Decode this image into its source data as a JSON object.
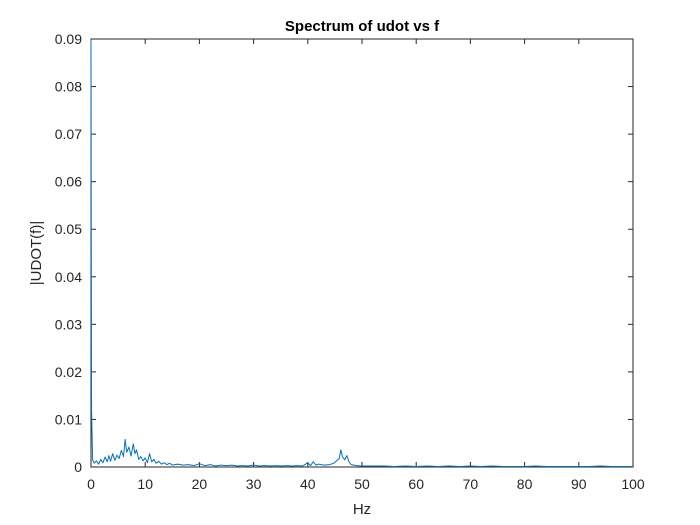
{
  "chart_data": {
    "type": "line",
    "title": "Spectrum of udot vs f",
    "xlabel": "Hz",
    "ylabel": "|UDOT(f)|",
    "xlim": [
      0,
      100
    ],
    "ylim": [
      0,
      0.09
    ],
    "x_ticks": [
      0,
      10,
      20,
      30,
      40,
      50,
      60,
      70,
      80,
      90,
      100
    ],
    "y_ticks": [
      0,
      0.01,
      0.02,
      0.03,
      0.04,
      0.05,
      0.06,
      0.07,
      0.08,
      0.09
    ],
    "y_tick_labels": [
      "0",
      "0.01",
      "0.02",
      "0.03",
      "0.04",
      "0.05",
      "0.06",
      "0.07",
      "0.08",
      "0.09"
    ],
    "grid": false,
    "line_color": "#0072BD",
    "series": [
      {
        "x": [
          0,
          0.1,
          0.3,
          0.6,
          1.0,
          1.4,
          1.8,
          2.2,
          2.6,
          3.0,
          3.3,
          3.6,
          4.0,
          4.4,
          4.8,
          5.2,
          5.6,
          6.0,
          6.3,
          6.6,
          7.0,
          7.4,
          7.8,
          8.1,
          8.4,
          8.8,
          9.2,
          9.6,
          10.0,
          10.4,
          10.8,
          11.2,
          11.6,
          12.0,
          12.5,
          13.0,
          13.5,
          14.0,
          14.5,
          15.0,
          16.0,
          17.0,
          18.0,
          19.0,
          20.0,
          21.0,
          22.0,
          23.0,
          24.0,
          25.0,
          26.0,
          27.0,
          28.0,
          29.0,
          30.0,
          31.0,
          32.0,
          33.0,
          34.0,
          35.0,
          36.0,
          37.0,
          38.0,
          39.0,
          40.0,
          40.5,
          41.0,
          41.5,
          42.0,
          43.0,
          44.0,
          44.8,
          45.4,
          45.8,
          46.1,
          46.4,
          46.8,
          47.2,
          47.6,
          48.0,
          48.5,
          49.0,
          50.0,
          52.0,
          54.0,
          56.0,
          58.0,
          60.0,
          62.0,
          64.0,
          66.0,
          68.0,
          70.0,
          72.0,
          74.0,
          76.0,
          78.0,
          80.0,
          82.0,
          84.0,
          86.0,
          88.0,
          90.0,
          92.0,
          94.0,
          96.0,
          98.0,
          100.0
        ],
        "y": [
          0.0899,
          0.012,
          0.0015,
          0.0008,
          0.0013,
          0.0006,
          0.0016,
          0.0009,
          0.0021,
          0.0011,
          0.0024,
          0.0012,
          0.0028,
          0.0014,
          0.0025,
          0.0018,
          0.0035,
          0.0022,
          0.0058,
          0.0031,
          0.0042,
          0.0023,
          0.0049,
          0.0028,
          0.0036,
          0.0016,
          0.0022,
          0.0013,
          0.0019,
          0.0009,
          0.0028,
          0.0011,
          0.0016,
          0.0008,
          0.0012,
          0.0006,
          0.0009,
          0.0005,
          0.0008,
          0.0004,
          0.0006,
          0.0004,
          0.0005,
          0.0003,
          0.0007,
          0.0003,
          0.0005,
          0.0002,
          0.0004,
          0.0003,
          0.0004,
          0.0002,
          0.0003,
          0.0002,
          0.0004,
          0.0002,
          0.0003,
          0.0002,
          0.0003,
          0.0002,
          0.0003,
          0.0002,
          0.0003,
          0.0002,
          0.0009,
          0.0003,
          0.0011,
          0.0004,
          0.0006,
          0.0004,
          0.0005,
          0.0008,
          0.0014,
          0.0018,
          0.0036,
          0.0021,
          0.0015,
          0.0024,
          0.0011,
          0.0005,
          0.0004,
          0.0003,
          0.0002,
          0.0002,
          0.0002,
          0.0001,
          0.0002,
          0.0001,
          0.0002,
          0.0001,
          0.0002,
          0.0001,
          0.0002,
          0.0001,
          0.0002,
          0.0001,
          0.0001,
          0.0001,
          0.0002,
          0.0001,
          0.0001,
          0.0001,
          0.0001,
          0.0001,
          0.0002,
          0.0001,
          0.0001,
          0.0001
        ]
      }
    ]
  }
}
